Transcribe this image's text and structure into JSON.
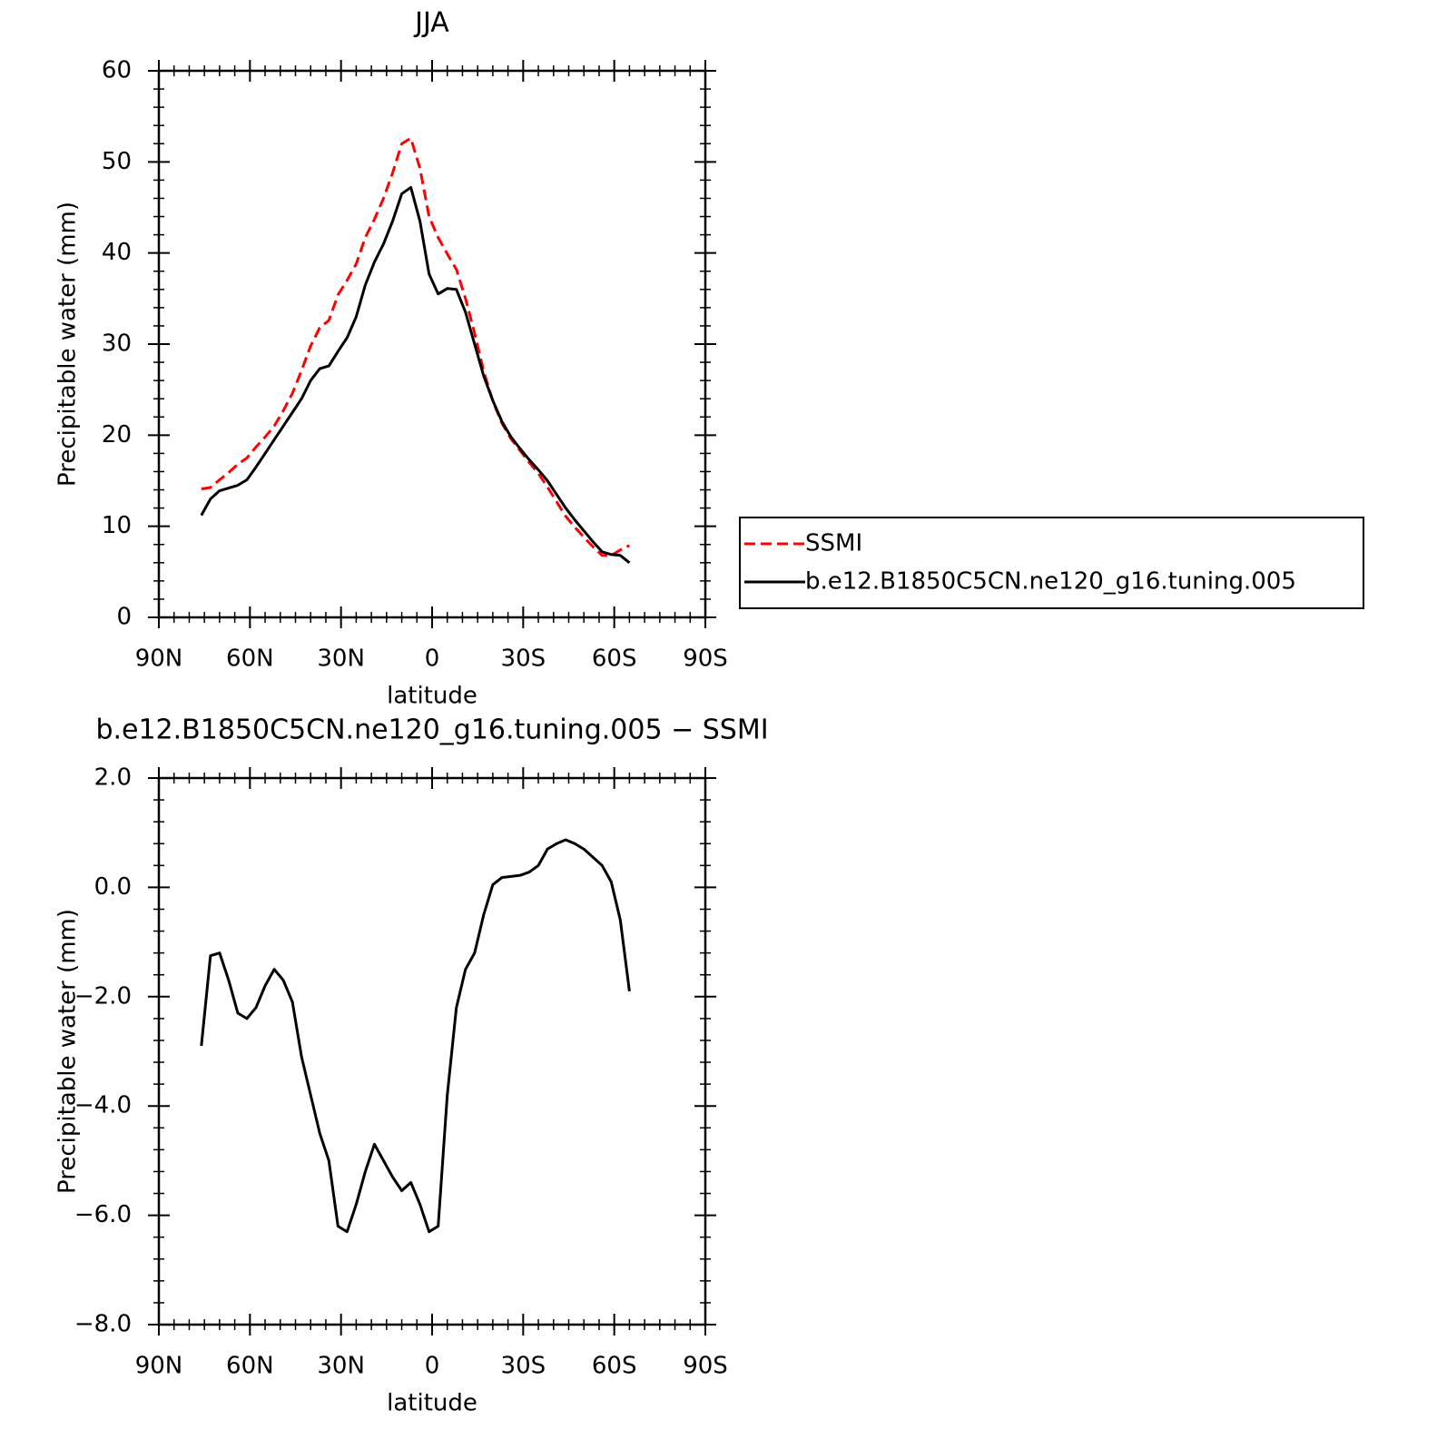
{
  "chart_data": [
    {
      "type": "line",
      "title": "JJA",
      "xlabel": "latitude",
      "ylabel": "Precipitable water (mm)",
      "x": [
        76,
        73,
        70,
        67,
        64,
        61,
        58,
        55,
        52,
        49,
        46,
        43,
        40,
        37,
        34,
        31,
        28,
        25,
        22,
        19,
        16,
        13,
        10,
        7,
        4,
        1,
        -2,
        -5,
        -8,
        -11,
        -14,
        -17,
        -20,
        -23,
        -26,
        -29,
        -32,
        -35,
        -38,
        -41,
        -44,
        -47,
        -50,
        -53,
        -56,
        -59,
        -62,
        -65
      ],
      "series": [
        {
          "name": "SSMI",
          "color": "#ff0000",
          "linestyle": "dashed",
          "values": [
            14.1,
            14.25,
            15.1,
            15.9,
            16.8,
            17.5,
            18.7,
            19.8,
            21.0,
            22.7,
            24.6,
            27.1,
            29.8,
            31.8,
            32.6,
            35.4,
            37.0,
            38.8,
            41.7,
            43.7,
            46.0,
            48.8,
            52.0,
            52.6,
            49.3,
            44.0,
            41.7,
            39.9,
            38.2,
            35.0,
            31.2,
            27.0,
            23.75,
            21.3,
            19.6,
            18.3,
            17.0,
            15.8,
            14.3,
            12.7,
            11.1,
            9.9,
            8.8,
            7.75,
            6.8,
            6.8,
            7.4,
            7.9
          ]
        },
        {
          "name": "b.e12.B1850C5CN.ne120_g16.tuning.005",
          "color": "#000000",
          "linestyle": "solid",
          "values": [
            11.2,
            13.0,
            13.9,
            14.2,
            14.5,
            15.1,
            16.5,
            18.0,
            19.5,
            21.0,
            22.5,
            24.0,
            26.0,
            27.3,
            27.6,
            29.2,
            30.7,
            33.0,
            36.5,
            39.0,
            41.0,
            43.5,
            46.5,
            47.2,
            43.5,
            37.7,
            35.5,
            36.1,
            36.0,
            33.5,
            30.0,
            26.5,
            23.8,
            21.5,
            19.8,
            18.5,
            17.3,
            16.2,
            15.0,
            13.5,
            12.0,
            10.7,
            9.5,
            8.3,
            7.2,
            6.9,
            6.8,
            6.0
          ]
        }
      ],
      "xlim": [
        90,
        -90
      ],
      "xticks": [
        {
          "value": 90,
          "label": "90N"
        },
        {
          "value": 60,
          "label": "60N"
        },
        {
          "value": 30,
          "label": "30N"
        },
        0,
        {
          "value": -30,
          "label": "30S"
        },
        {
          "value": -60,
          "label": "60S"
        },
        {
          "value": -90,
          "label": "90S"
        }
      ],
      "ylim": [
        0,
        60
      ],
      "yticks": [
        0,
        10,
        20,
        30,
        40,
        50,
        60
      ],
      "legend": "right"
    },
    {
      "type": "line",
      "title": "b.e12.B1850C5CN.ne120_g16.tuning.005 − SSMI",
      "xlabel": "latitude",
      "ylabel": "Precipitable water (mm)",
      "x": [
        76,
        73,
        70,
        67,
        64,
        61,
        58,
        55,
        52,
        49,
        46,
        43,
        40,
        37,
        34,
        31,
        28,
        25,
        22,
        19,
        16,
        13,
        10,
        7,
        4,
        1,
        -2,
        -5,
        -8,
        -11,
        -14,
        -17,
        -20,
        -23,
        -26,
        -29,
        -32,
        -35,
        -38,
        -41,
        -44,
        -47,
        -50,
        -53,
        -56,
        -59,
        -62,
        -65
      ],
      "color": "#000000",
      "values": [
        -2.9,
        -1.25,
        -1.2,
        -1.7,
        -2.3,
        -2.4,
        -2.2,
        -1.8,
        -1.5,
        -1.7,
        -2.1,
        -3.1,
        -3.8,
        -4.5,
        -5.0,
        -6.2,
        -6.3,
        -5.8,
        -5.2,
        -4.7,
        -5.0,
        -5.3,
        -5.55,
        -5.4,
        -5.8,
        -6.3,
        -6.2,
        -3.8,
        -2.2,
        -1.5,
        -1.2,
        -0.5,
        0.05,
        0.18,
        0.2,
        0.22,
        0.28,
        0.4,
        0.7,
        0.8,
        0.87,
        0.8,
        0.7,
        0.55,
        0.4,
        0.1,
        -0.6,
        -1.9
      ],
      "xlim": [
        90,
        -90
      ],
      "xticks": [
        {
          "value": 90,
          "label": "90N"
        },
        {
          "value": 60,
          "label": "60N"
        },
        {
          "value": 30,
          "label": "30N"
        },
        0,
        {
          "value": -30,
          "label": "30S"
        },
        {
          "value": -60,
          "label": "60S"
        },
        {
          "value": -90,
          "label": "90S"
        }
      ],
      "ylim": [
        -8,
        2
      ],
      "yticks": [
        {
          "value": -8,
          "label": "−8.0"
        },
        {
          "value": -6,
          "label": "−6.0"
        },
        {
          "value": -4,
          "label": "−4.0"
        },
        {
          "value": -2,
          "label": "−2.0"
        },
        {
          "value": 0,
          "label": "0.0"
        },
        {
          "value": 2,
          "label": "2.0"
        }
      ]
    }
  ]
}
